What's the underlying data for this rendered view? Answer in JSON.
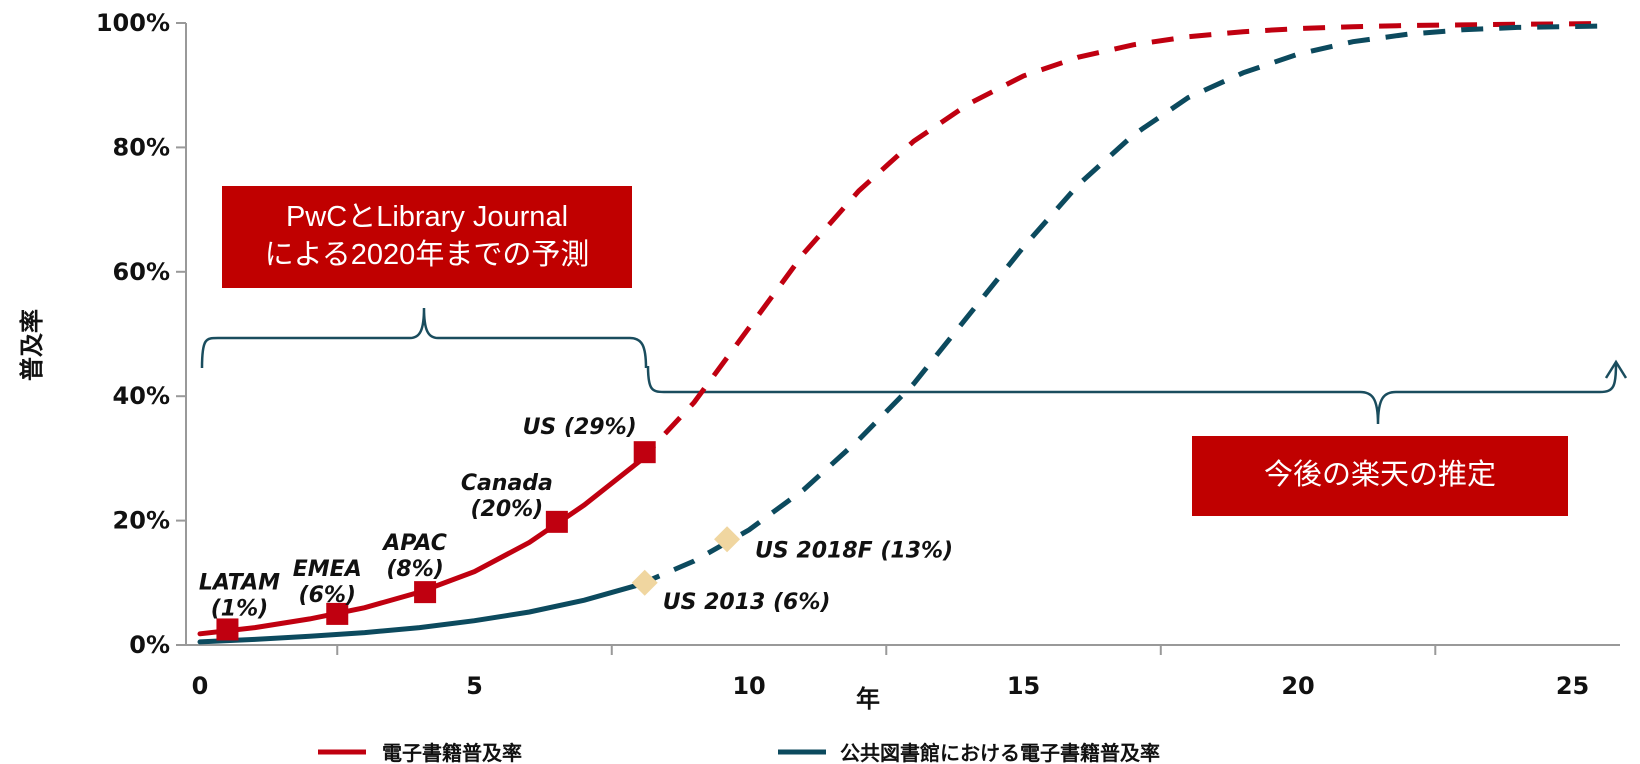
{
  "chart_data": {
    "type": "line",
    "title": "",
    "xlabel": "年",
    "ylabel": "普及率",
    "xlim": [
      0,
      25.5
    ],
    "ylim": [
      0,
      100
    ],
    "x_ticks": [
      0,
      5,
      10,
      15,
      20,
      25
    ],
    "y_ticks": [
      0,
      20,
      40,
      60,
      80,
      100
    ],
    "y_tick_labels": [
      "0%",
      "20%",
      "40%",
      "60%",
      "80%",
      "100%"
    ],
    "grid": false,
    "legend_position": "bottom",
    "series": [
      {
        "name": "電子書籍普及率",
        "color": "#c00010",
        "actual_x": [
          0,
          1,
          2,
          3,
          4,
          5,
          6,
          7,
          8
        ],
        "actual_y": [
          1.8,
          2.8,
          4.2,
          6.0,
          8.5,
          11.8,
          16.5,
          22.5,
          29.5
        ],
        "forecast_x": [
          8,
          9,
          10,
          11,
          12,
          13,
          14,
          15,
          16,
          17,
          18,
          19,
          20,
          21,
          22,
          23,
          24,
          25.5
        ],
        "forecast_y": [
          29.5,
          39,
          51,
          63,
          73,
          81,
          87,
          91.5,
          94.5,
          96.5,
          97.8,
          98.6,
          99.1,
          99.4,
          99.6,
          99.7,
          99.8,
          99.9
        ],
        "markers": [
          {
            "x": 0.5,
            "y": 2.5,
            "label": "LATAM\n(1%)"
          },
          {
            "x": 2.5,
            "y": 5,
            "label": "EMEA\n(6%)"
          },
          {
            "x": 4.1,
            "y": 8.5,
            "label": "APAC\n(8%)"
          },
          {
            "x": 6.5,
            "y": 19.8,
            "label": "Canada\n(20%)"
          },
          {
            "x": 8.1,
            "y": 31,
            "label": "US (29%)"
          }
        ]
      },
      {
        "name": "公共図書館における電子書籍普及率",
        "color": "#0c4a5e",
        "actual_x": [
          0,
          1,
          2,
          3,
          4,
          5,
          6,
          7,
          8
        ],
        "actual_y": [
          0.5,
          0.9,
          1.4,
          2.0,
          2.8,
          3.9,
          5.3,
          7.2,
          9.7
        ],
        "forecast_x": [
          8,
          9,
          10,
          11,
          12,
          13,
          14,
          15,
          16,
          17,
          18,
          19,
          20,
          21,
          22,
          23,
          24,
          25.5
        ],
        "forecast_y": [
          9.7,
          13.5,
          18.5,
          25,
          33,
          42,
          53,
          64,
          74,
          82,
          88,
          92,
          95,
          97,
          98.2,
          98.9,
          99.3,
          99.5
        ],
        "markers": [
          {
            "x": 8.1,
            "y": 10,
            "label": "US 2013 (6%)"
          },
          {
            "x": 9.6,
            "y": 17,
            "label": "US 2018F (13%)"
          }
        ]
      }
    ],
    "annotations": [
      {
        "text": "PwCとLibrary Journal\nによる2020年までの予測"
      },
      {
        "text": "今後の楽天の推定"
      }
    ]
  }
}
